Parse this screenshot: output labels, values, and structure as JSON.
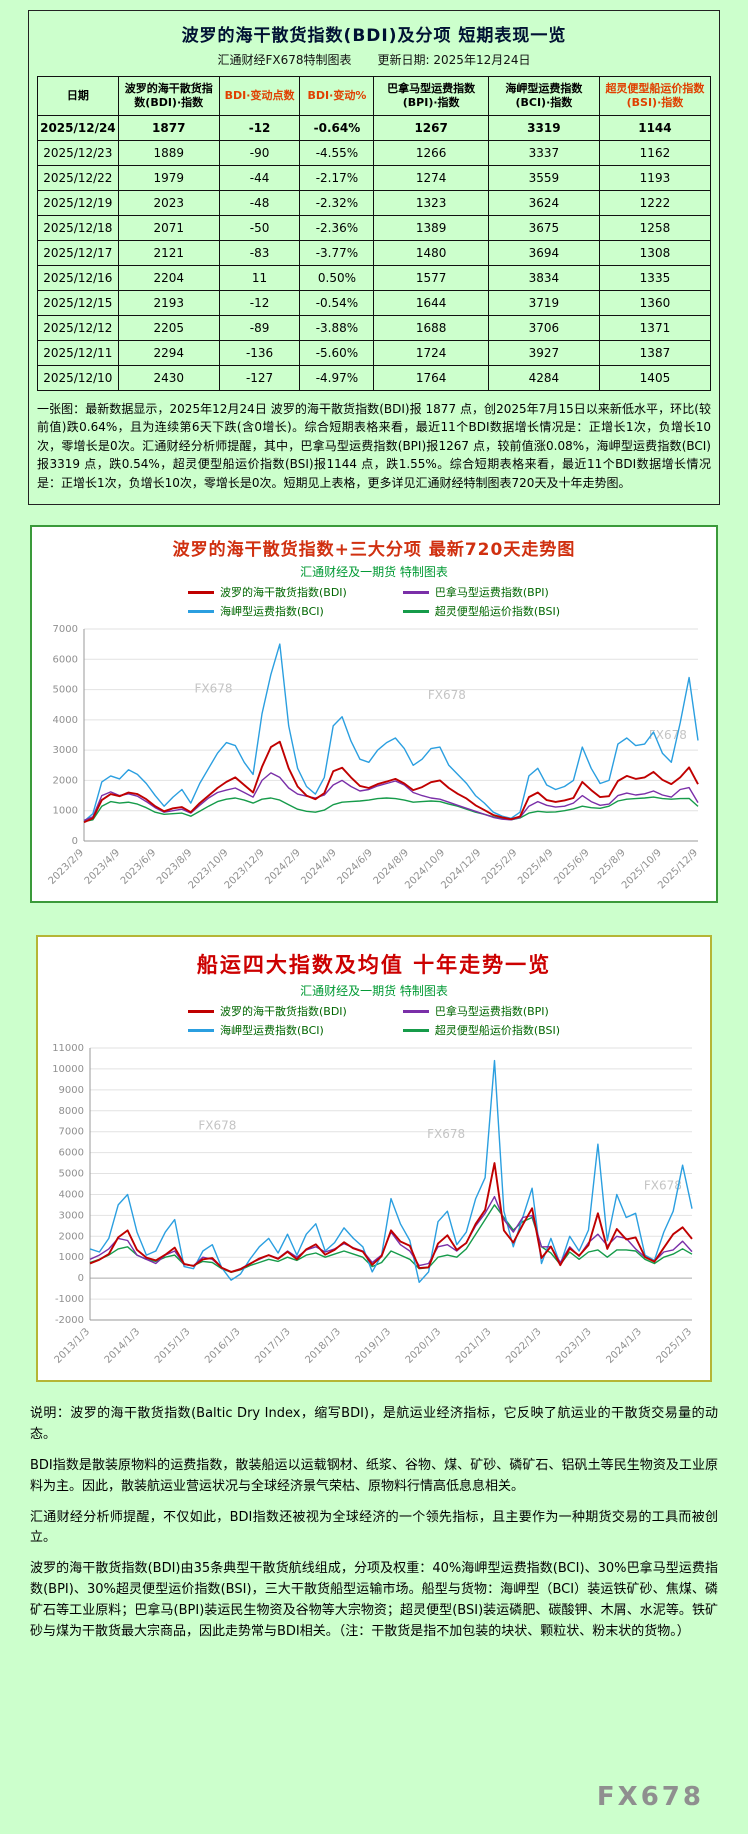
{
  "table_section": {
    "title": "波罗的海干散货指数(BDI)及分项  短期表现一览",
    "subtitle_left": "汇通财经FX678特制图表",
    "subtitle_right": "更新日期: 2025年12月24日",
    "headers": [
      "日期",
      "波罗的海干散货指数(BDI)·指数",
      "BDI·变动点数",
      "BDI·变动%",
      "巴拿马型运费指数(BPI)·指数",
      "海岬型运费指数(BCI)·指数",
      "超灵便型船运价指数(BSI)·指数"
    ],
    "header_colors": [
      "#000000",
      "#000000",
      "#e04000",
      "#e04000",
      "#000000",
      "#000000",
      "#e04000"
    ],
    "rows": [
      [
        "2025/12/24",
        "1877",
        "-12",
        "-0.64%",
        "1267",
        "3319",
        "1144"
      ],
      [
        "2025/12/23",
        "1889",
        "-90",
        "-4.55%",
        "1266",
        "3337",
        "1162"
      ],
      [
        "2025/12/22",
        "1979",
        "-44",
        "-2.17%",
        "1274",
        "3559",
        "1193"
      ],
      [
        "2025/12/19",
        "2023",
        "-48",
        "-2.32%",
        "1323",
        "3624",
        "1222"
      ],
      [
        "2025/12/18",
        "2071",
        "-50",
        "-2.36%",
        "1389",
        "3675",
        "1258"
      ],
      [
        "2025/12/17",
        "2121",
        "-83",
        "-3.77%",
        "1480",
        "3694",
        "1308"
      ],
      [
        "2025/12/16",
        "2204",
        "11",
        "0.50%",
        "1577",
        "3834",
        "1335"
      ],
      [
        "2025/12/15",
        "2193",
        "-12",
        "-0.54%",
        "1644",
        "3719",
        "1360"
      ],
      [
        "2025/12/12",
        "2205",
        "-89",
        "-3.88%",
        "1688",
        "3706",
        "1371"
      ],
      [
        "2025/12/11",
        "2294",
        "-136",
        "-5.60%",
        "1724",
        "3927",
        "1387"
      ],
      [
        "2025/12/10",
        "2430",
        "-127",
        "-4.97%",
        "1764",
        "4284",
        "1405"
      ]
    ],
    "note": "一张图：最新数据显示，2025年12月24日 波罗的海干散货指数(BDI)报 1877 点，创2025年7月15日以来新低水平，环比(较前值)跌0.64%，且为连续第6天下跌(含0增长)。综合短期表格来看，最近11个BDI数据增长情况是：正增长1次，负增长10次，零增长是0次。汇通财经分析师提醒，其中，巴拿马型运费指数(BPI)报1267 点，较前值涨0.08%，海岬型运费指数(BCI)报3319 点，跌0.54%，超灵便型船运价指数(BSI)报1144 点，跌1.55%。综合短期表格来看，最近11个BDI数据增长情况是：正增长1次，负增长10次，零增长是0次。短期见上表格，更多详见汇通财经特制图表720天及十年走势图。"
  },
  "chart_data": [
    {
      "type": "line",
      "title": "波罗的海干散货指数+三大分项  最新720天走势图",
      "subtitle": "汇通财经及一期货 特制图表",
      "legend_position": "top",
      "grid": true,
      "ylim": [
        0,
        7000
      ],
      "ytick_step": 1000,
      "x_labels": [
        "2023/2/9",
        "2023/4/9",
        "2023/6/9",
        "2023/8/9",
        "2023/10/9",
        "2023/12/9",
        "2024/2/9",
        "2024/4/9",
        "2024/6/9",
        "2024/8/9",
        "2024/10/9",
        "2024/12/9",
        "2025/2/9",
        "2025/4/9",
        "2025/6/9",
        "2025/8/9",
        "2025/10/9",
        "2025/12/9"
      ],
      "watermark": "FX678",
      "series": [
        {
          "name": "波罗的海干散货指数(BDI)",
          "color": "#c00000",
          "values": [
            620,
            750,
            1350,
            1550,
            1480,
            1600,
            1550,
            1380,
            1150,
            980,
            1080,
            1120,
            950,
            1250,
            1500,
            1750,
            1950,
            2100,
            1850,
            1600,
            2450,
            3100,
            3280,
            2400,
            1800,
            1500,
            1380,
            1580,
            2300,
            2419,
            2100,
            1820,
            1750,
            1880,
            1960,
            2050,
            1900,
            1680,
            1780,
            1940,
            2000,
            1750,
            1560,
            1400,
            1180,
            1020,
            860,
            780,
            720,
            810,
            1450,
            1600,
            1350,
            1290,
            1340,
            1420,
            1950,
            1680,
            1450,
            1480,
            1980,
            2150,
            2050,
            2100,
            2280,
            2020,
            1880,
            2100,
            2430,
            1877
          ]
        },
        {
          "name": "巴拿马型运费指数(BPI)",
          "color": "#7a2fa8",
          "values": [
            680,
            800,
            1500,
            1620,
            1500,
            1560,
            1480,
            1300,
            1100,
            950,
            1000,
            1050,
            920,
            1180,
            1420,
            1600,
            1680,
            1750,
            1600,
            1450,
            2000,
            2250,
            2100,
            1750,
            1550,
            1480,
            1420,
            1520,
            1850,
            2000,
            1800,
            1650,
            1700,
            1820,
            1900,
            1980,
            1850,
            1600,
            1500,
            1420,
            1380,
            1280,
            1180,
            1080,
            980,
            880,
            780,
            720,
            700,
            780,
            1150,
            1300,
            1180,
            1120,
            1150,
            1250,
            1500,
            1300,
            1180,
            1220,
            1500,
            1580,
            1520,
            1560,
            1650,
            1520,
            1450,
            1700,
            1764,
            1267
          ]
        },
        {
          "name": "海岬型运费指数(BCI)",
          "color": "#2b9fe0",
          "values": [
            650,
            900,
            1950,
            2150,
            2050,
            2350,
            2200,
            1900,
            1500,
            1150,
            1450,
            1700,
            1250,
            1900,
            2400,
            2900,
            3250,
            3150,
            2600,
            2200,
            4200,
            5500,
            6500,
            3800,
            2400,
            1800,
            1550,
            2100,
            3800,
            4100,
            3300,
            2700,
            2600,
            3000,
            3250,
            3400,
            3050,
            2500,
            2700,
            3050,
            3100,
            2500,
            2200,
            1900,
            1500,
            1250,
            950,
            820,
            750,
            950,
            2150,
            2400,
            1850,
            1700,
            1800,
            2000,
            3100,
            2400,
            1900,
            2000,
            3200,
            3400,
            3150,
            3200,
            3600,
            2900,
            2600,
            3900,
            5400,
            3319
          ]
        },
        {
          "name": "超灵便型船运价指数(BSI)",
          "color": "#169b4a",
          "values": [
            640,
            700,
            1150,
            1300,
            1250,
            1280,
            1220,
            1100,
            950,
            880,
            900,
            920,
            820,
            980,
            1150,
            1300,
            1380,
            1420,
            1350,
            1250,
            1380,
            1420,
            1350,
            1200,
            1050,
            980,
            950,
            1020,
            1200,
            1280,
            1300,
            1320,
            1350,
            1400,
            1420,
            1400,
            1350,
            1280,
            1300,
            1320,
            1300,
            1220,
            1150,
            1050,
            950,
            880,
            800,
            740,
            700,
            760,
            920,
            980,
            950,
            960,
            1000,
            1060,
            1150,
            1100,
            1080,
            1150,
            1320,
            1380,
            1400,
            1420,
            1450,
            1400,
            1380,
            1400,
            1405,
            1144
          ]
        }
      ]
    },
    {
      "type": "line",
      "title": "船运四大指数及均值 十年走势一览",
      "subtitle": "汇通财经及一期货 特制图表",
      "legend_position": "top",
      "grid": true,
      "ylim": [
        -2000,
        11000
      ],
      "ytick_step": 1000,
      "x_labels": [
        "2013/1/3",
        "2014/1/3",
        "2015/1/3",
        "2016/1/3",
        "2017/1/3",
        "2018/1/3",
        "2019/1/3",
        "2020/1/3",
        "2021/1/3",
        "2022/1/3",
        "2023/1/3",
        "2024/1/3",
        "2025/1/3"
      ],
      "watermark": "FX678",
      "series": [
        {
          "name": "波罗的海干散货指数(BDI)",
          "color": "#c00000",
          "values": [
            700,
            880,
            1150,
            1950,
            2280,
            1350,
            980,
            850,
            1120,
            1460,
            680,
            580,
            900,
            960,
            500,
            300,
            430,
            680,
            940,
            1100,
            920,
            1260,
            900,
            1380,
            1620,
            1120,
            1350,
            1720,
            1420,
            1270,
            640,
            1050,
            2280,
            1750,
            1550,
            480,
            520,
            1650,
            2050,
            1350,
            1680,
            2600,
            3260,
            5500,
            2280,
            1700,
            2550,
            3340,
            965,
            1515,
            620,
            1420,
            1080,
            1580,
            3100,
            1400,
            2350,
            1850,
            1950,
            1010,
            790,
            1450,
            2100,
            2430,
            1877
          ]
        },
        {
          "name": "巴拿马型运费指数(BPI)",
          "color": "#7a2fa8",
          "values": [
            900,
            1100,
            1400,
            1900,
            1800,
            1100,
            900,
            700,
            1100,
            1300,
            650,
            600,
            1000,
            900,
            500,
            300,
            450,
            700,
            900,
            1100,
            950,
            1300,
            1000,
            1350,
            1500,
            1250,
            1400,
            1650,
            1450,
            1300,
            750,
            1100,
            2200,
            1600,
            1300,
            600,
            700,
            1500,
            1600,
            1300,
            1700,
            2500,
            3100,
            3900,
            2800,
            2200,
            2900,
            3000,
            1500,
            1500,
            750,
            1500,
            1050,
            1700,
            2100,
            1550,
            2000,
            1900,
            1400,
            1000,
            800,
            1250,
            1350,
            1764,
            1267
          ]
        },
        {
          "name": "海岬型运费指数(BCI)",
          "color": "#2b9fe0",
          "values": [
            1400,
            1250,
            1900,
            3500,
            4000,
            2200,
            1100,
            1300,
            2200,
            2800,
            550,
            450,
            1300,
            1600,
            500,
            -100,
            200,
            900,
            1500,
            1900,
            1200,
            2100,
            1100,
            2100,
            2600,
            1300,
            1700,
            2400,
            1900,
            1500,
            300,
            1100,
            3800,
            2600,
            1800,
            -200,
            300,
            2700,
            3200,
            1600,
            2200,
            3800,
            4800,
            10400,
            3200,
            1500,
            2900,
            4300,
            700,
            1900,
            650,
            2000,
            1300,
            2300,
            6400,
            1800,
            4000,
            2900,
            3100,
            1100,
            850,
            2200,
            3200,
            5400,
            3319
          ]
        },
        {
          "name": "超灵便型船运价指数(BSI)",
          "color": "#169b4a",
          "values": [
            750,
            900,
            1100,
            1400,
            1500,
            1100,
            900,
            800,
            1000,
            1100,
            650,
            600,
            800,
            750,
            450,
            280,
            400,
            600,
            750,
            900,
            800,
            1000,
            850,
            1100,
            1200,
            1000,
            1150,
            1300,
            1150,
            1000,
            550,
            750,
            1300,
            1100,
            900,
            450,
            500,
            1000,
            1100,
            1000,
            1400,
            2100,
            2800,
            3500,
            2900,
            2300,
            2700,
            2900,
            1500,
            1200,
            650,
            1250,
            900,
            1250,
            1350,
            1000,
            1350,
            1350,
            1300,
            900,
            700,
            1000,
            1150,
            1405,
            1144
          ]
        }
      ]
    }
  ],
  "footer": {
    "paragraphs": [
      "说明：波罗的海干散货指数(Baltic Dry Index，缩写BDI)，是航运业经济指标，它反映了航运业的干散货交易量的动态。",
      "BDI指数是散装原物料的运费指数，散装船运以运载钢材、纸浆、谷物、煤、矿砂、磷矿石、铝矾土等民生物资及工业原料为主。因此，散装航运业营运状况与全球经济景气荣枯、原物料行情高低息息相关。",
      "汇通财经分析师提醒，不仅如此，BDI指数还被视为全球经济的一个领先指标，且主要作为一种期货交易的工具而被创立。",
      "波罗的海干散货指数(BDI)由35条典型干散货航线组成，分项及权重：40%海岬型运费指数(BCI)、30%巴拿马型运费指数(BPI)、30%超灵便型运价指数(BSI)，三大干散货船型运输市场。船型与货物：海岬型（BCI）装运铁矿砂、焦煤、磷矿石等工业原料；巴拿马(BPI)装运民生物资及谷物等大宗物资；超灵便型(BSI)装运磷肥、碳酸钾、木屑、水泥等。铁矿砂与煤为干散货最大宗商品，因此走势常与BDI相关。（注：干散货是指不加包装的块状、颗粒状、粉末状的货物。）"
    ],
    "watermark": "FX678"
  }
}
